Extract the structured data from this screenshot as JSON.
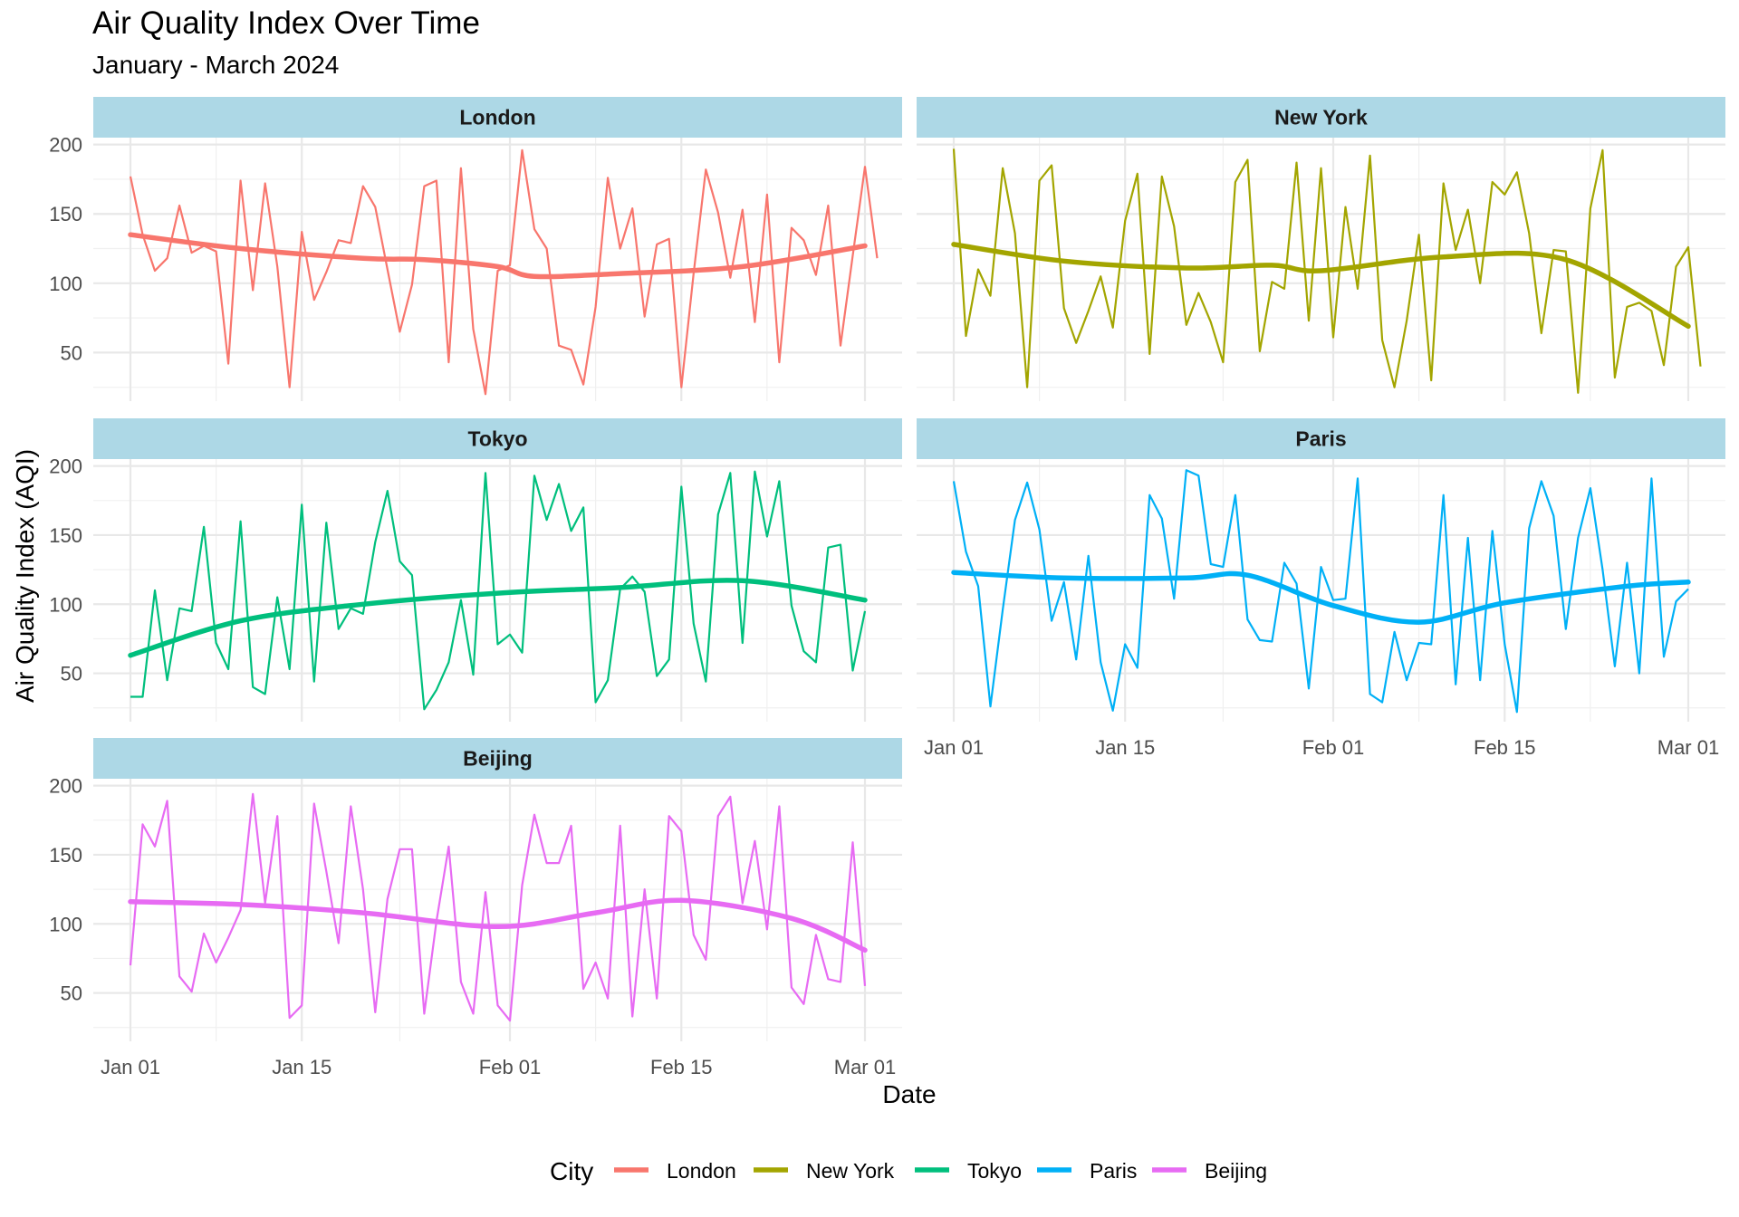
{
  "chart_data": {
    "type": "line",
    "title": "Air Quality Index Over Time",
    "subtitle": "January - March 2024",
    "xlabel": "Date",
    "ylabel": "Air Quality Index (AQI)",
    "xlim": [
      "2024-01-01",
      "2024-03-01"
    ],
    "ylim": [
      15,
      205
    ],
    "x_ticks": [
      "Jan 01",
      "Jan 15",
      "Feb 01",
      "Feb 15",
      "Mar 01"
    ],
    "y_ticks": [
      50,
      100,
      150,
      200
    ],
    "grid": true,
    "legend": {
      "title": "City",
      "position": "bottom"
    },
    "facets": [
      "London",
      "New York",
      "Tokyo",
      "Paris",
      "Beijing"
    ],
    "x_start": "2024-01-01",
    "series": [
      {
        "name": "London",
        "color": "#F8766D",
        "values": [
          177,
          135,
          109,
          118,
          156,
          122,
          127,
          123,
          42,
          174,
          95,
          172,
          112,
          25,
          137,
          88,
          108,
          131,
          129,
          170,
          155,
          110,
          65,
          99,
          170,
          174,
          43,
          183,
          67,
          20,
          109,
          113,
          196,
          139,
          125,
          55,
          52,
          27,
          83,
          176,
          125,
          154,
          76,
          128,
          132,
          25,
          107,
          182,
          151,
          104,
          153,
          72,
          164,
          43,
          140,
          131,
          106,
          156,
          55,
          120,
          184,
          118
        ],
        "trend": [
          [
            "2024-01-01",
            135
          ],
          [
            "2024-01-10",
            125
          ],
          [
            "2024-01-20",
            118
          ],
          [
            "2024-01-25",
            117
          ],
          [
            "2024-01-31",
            112
          ],
          [
            "2024-02-03",
            105
          ],
          [
            "2024-02-10",
            107
          ],
          [
            "2024-02-20",
            112
          ],
          [
            "2024-03-01",
            127
          ]
        ]
      },
      {
        "name": "New York",
        "color": "#A3A500",
        "values": [
          197,
          62,
          110,
          91,
          183,
          136,
          25,
          174,
          185,
          82,
          57,
          80,
          105,
          68,
          145,
          179,
          49,
          177,
          141,
          70,
          93,
          72,
          43,
          173,
          189,
          51,
          101,
          96,
          187,
          73,
          183,
          61,
          155,
          96,
          192,
          59,
          25,
          73,
          135,
          30,
          172,
          124,
          153,
          100,
          173,
          164,
          180,
          136,
          64,
          124,
          123,
          21,
          154,
          196,
          32,
          83,
          86,
          80,
          41,
          112,
          126,
          40
        ],
        "trend": [
          [
            "2024-01-01",
            128
          ],
          [
            "2024-01-10",
            116
          ],
          [
            "2024-01-20",
            111
          ],
          [
            "2024-01-27",
            113
          ],
          [
            "2024-01-31",
            109
          ],
          [
            "2024-02-10",
            119
          ],
          [
            "2024-02-20",
            117
          ],
          [
            "2024-03-01",
            69
          ]
        ]
      },
      {
        "name": "Tokyo",
        "color": "#00BF7D",
        "values": [
          33,
          33,
          110,
          45,
          97,
          95,
          156,
          72,
          53,
          160,
          40,
          35,
          105,
          53,
          172,
          44,
          159,
          82,
          97,
          93,
          145,
          182,
          131,
          121,
          24,
          38,
          58,
          103,
          49,
          195,
          71,
          78,
          65,
          193,
          161,
          187,
          153,
          170,
          29,
          45,
          111,
          120,
          109,
          48,
          60,
          185,
          86,
          44,
          165,
          195,
          72,
          196,
          149,
          189,
          99,
          66,
          58,
          141,
          143,
          52,
          95
        ],
        "trend": [
          [
            "2024-01-01",
            63
          ],
          [
            "2024-01-10",
            88
          ],
          [
            "2024-01-20",
            100
          ],
          [
            "2024-01-31",
            108
          ],
          [
            "2024-02-10",
            112
          ],
          [
            "2024-02-20",
            117
          ],
          [
            "2024-03-01",
            103
          ]
        ]
      },
      {
        "name": "Paris",
        "color": "#00B0F6",
        "values": [
          189,
          138,
          113,
          26,
          96,
          161,
          188,
          154,
          88,
          116,
          60,
          135,
          58,
          23,
          71,
          54,
          179,
          162,
          104,
          197,
          193,
          129,
          127,
          179,
          89,
          74,
          73,
          130,
          115,
          39,
          127,
          103,
          104,
          191,
          35,
          29,
          80,
          45,
          72,
          71,
          179,
          42,
          148,
          45,
          153,
          71,
          22,
          155,
          189,
          164,
          82,
          148,
          184,
          125,
          55,
          130,
          50,
          191,
          62,
          102,
          111
        ],
        "trend": [
          [
            "2024-01-01",
            123
          ],
          [
            "2024-01-10",
            119
          ],
          [
            "2024-01-20",
            119
          ],
          [
            "2024-01-25",
            121
          ],
          [
            "2024-02-01",
            99
          ],
          [
            "2024-02-08",
            87
          ],
          [
            "2024-02-15",
            101
          ],
          [
            "2024-02-25",
            113
          ],
          [
            "2024-03-01",
            116
          ]
        ]
      },
      {
        "name": "Beijing",
        "color": "#E76BF3",
        "values": [
          70,
          172,
          156,
          189,
          62,
          51,
          93,
          72,
          90,
          110,
          194,
          115,
          178,
          32,
          41,
          187,
          138,
          86,
          185,
          125,
          36,
          118,
          154,
          154,
          35,
          102,
          156,
          58,
          35,
          123,
          41,
          30,
          128,
          179,
          144,
          144,
          171,
          53,
          72,
          46,
          171,
          33,
          125,
          46,
          178,
          167,
          92,
          74,
          178,
          192,
          115,
          160,
          96,
          185,
          54,
          42,
          92,
          60,
          58,
          159,
          55
        ],
        "trend": [
          [
            "2024-01-01",
            116
          ],
          [
            "2024-01-10",
            114
          ],
          [
            "2024-01-20",
            108
          ],
          [
            "2024-01-31",
            98
          ],
          [
            "2024-02-08",
            108
          ],
          [
            "2024-02-15",
            117
          ],
          [
            "2024-02-24",
            104
          ],
          [
            "2024-03-01",
            81
          ]
        ]
      }
    ]
  }
}
